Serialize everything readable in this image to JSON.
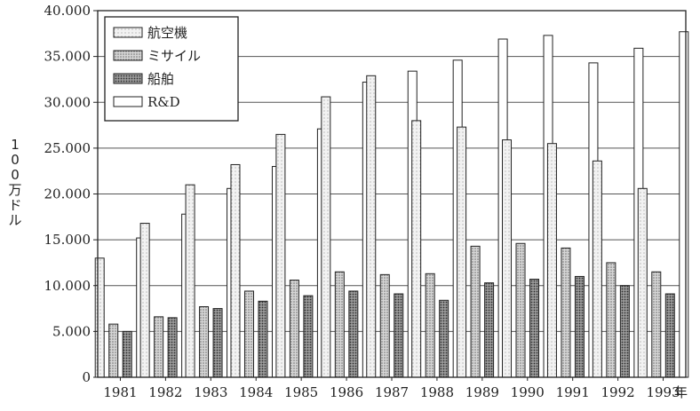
{
  "chart_data": {
    "type": "bar",
    "categories": [
      "1981",
      "1982",
      "1983",
      "1984",
      "1985",
      "1986",
      "1987",
      "1988",
      "1989",
      "1990",
      "1991",
      "1992",
      "1993"
    ],
    "x_unit": "年",
    "ylabel": "100万ドル",
    "ylabel_chars": [
      "1",
      "0",
      "0",
      "万",
      "ド",
      "ル"
    ],
    "ylim": [
      0,
      40000
    ],
    "y_ticks": [
      0,
      5000,
      10000,
      15000,
      20000,
      25000,
      30000,
      35000,
      40000
    ],
    "y_tick_labels": [
      "0",
      "5.000",
      "10.000",
      "15.000",
      "20.000",
      "25.000",
      "30.000",
      "35.000",
      "40.000"
    ],
    "grid": true,
    "legend_position": "top-left",
    "series": [
      {
        "name": "航空機",
        "values": [
          13000,
          16800,
          21000,
          23200,
          26500,
          30600,
          32900,
          28000,
          27300,
          25900,
          25500,
          23600,
          20600
        ],
        "fill": "dots-light"
      },
      {
        "name": "ミサイル",
        "values": [
          5800,
          6600,
          7700,
          9400,
          10600,
          11500,
          11200,
          11300,
          14300,
          14600,
          14100,
          12500,
          11500
        ],
        "fill": "dots-medium"
      },
      {
        "name": "船舶",
        "values": [
          5000,
          6500,
          7500,
          8300,
          8900,
          9400,
          9100,
          8400,
          10300,
          10700,
          11000,
          10000,
          9100
        ],
        "fill": "dots-dark"
      },
      {
        "name": "R&D",
        "values": [
          15200,
          17800,
          20600,
          23000,
          27100,
          32200,
          33400,
          34600,
          36900,
          37300,
          34300,
          35900,
          37700
        ],
        "fill": "white"
      }
    ]
  }
}
